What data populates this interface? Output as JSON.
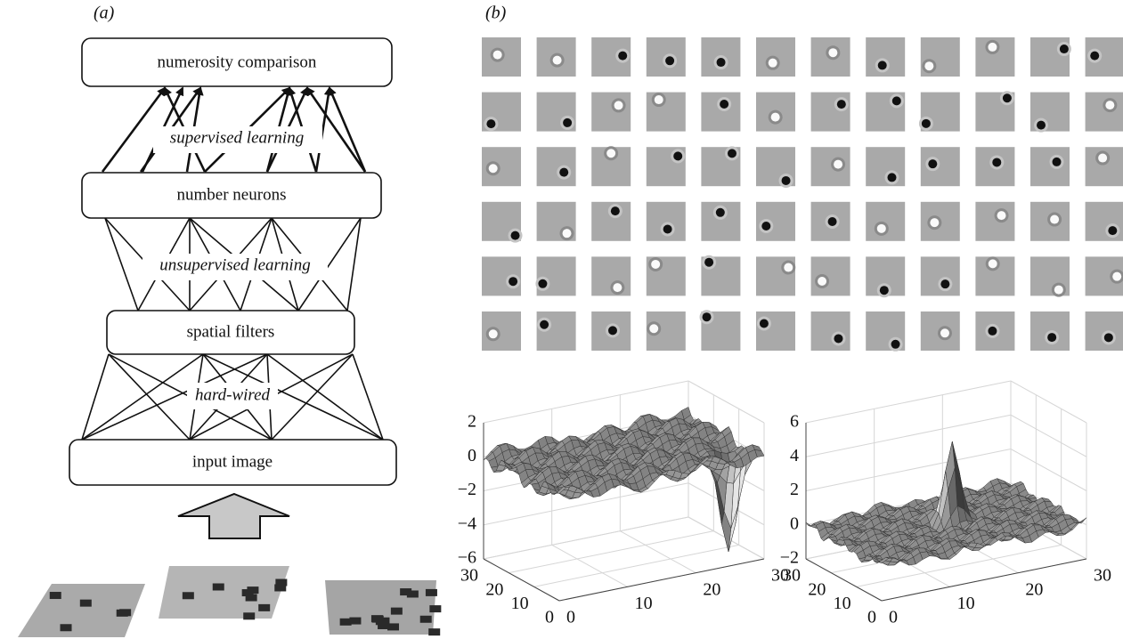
{
  "panel_a": {
    "label": "(a)",
    "boxes": [
      "numerosity comparison",
      "number neurons",
      "spatial filters",
      "input image"
    ],
    "edges": [
      "supervised learning",
      "unsupervised learning",
      "hard-wired"
    ]
  },
  "panel_b": {
    "label": "(b)",
    "plots": [
      {
        "zticks": [
          "2",
          "0",
          "−2",
          "−4",
          "−6"
        ],
        "xticks": [
          "0",
          "10",
          "20",
          "30"
        ],
        "yticks": [
          "0",
          "10",
          "20",
          "30"
        ]
      },
      {
        "zticks": [
          "6",
          "4",
          "2",
          "0",
          "−2"
        ],
        "xticks": [
          "0",
          "10",
          "20",
          "30"
        ],
        "yticks": [
          "0",
          "10",
          "20",
          "30"
        ]
      }
    ]
  }
}
